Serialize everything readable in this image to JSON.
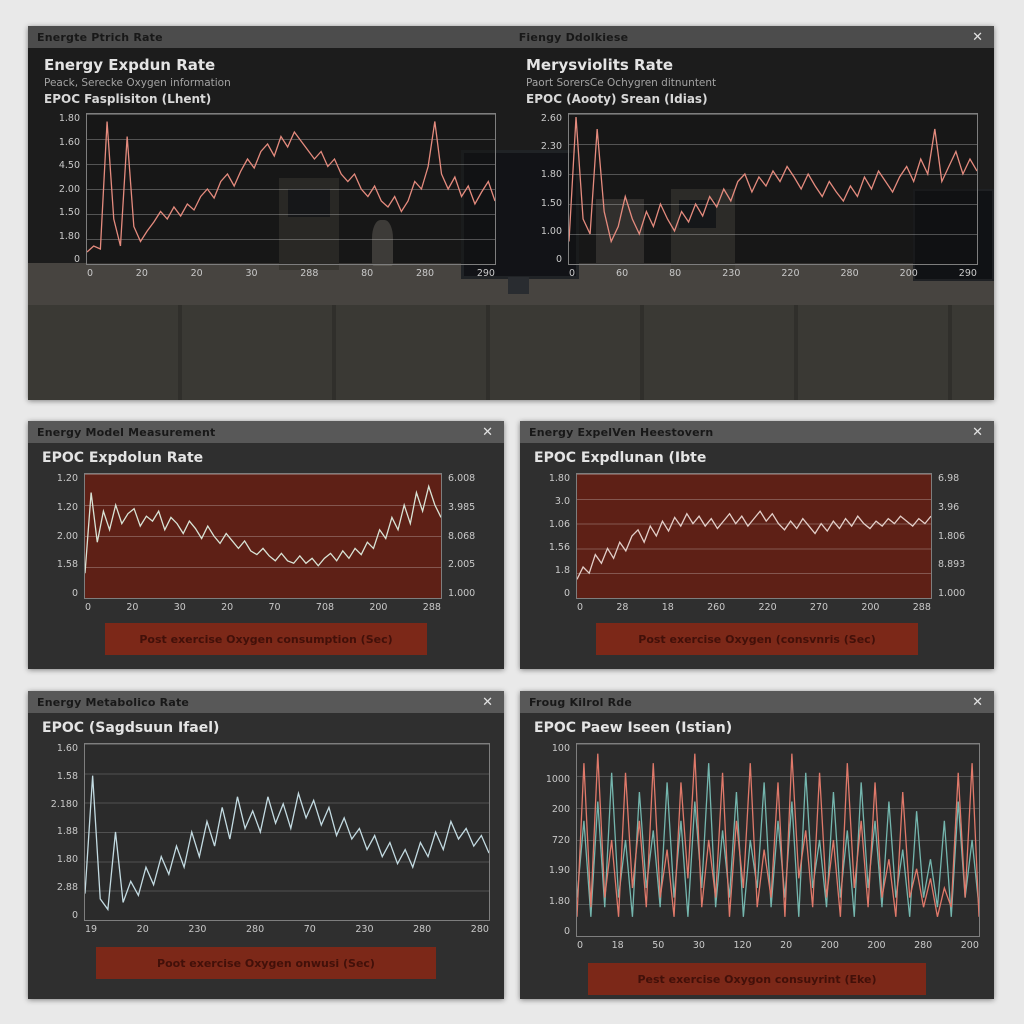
{
  "ui": {
    "close_glyph": "✕"
  },
  "top_window": {
    "titlebar_left": "Energte Ptrich Rate",
    "titlebar_right": "Fiengy Ddolkiese"
  },
  "windows": [
    {
      "title": "Energy Model Measurement"
    },
    {
      "title": "Energy ExpelVen Heestovern"
    },
    {
      "title": "Energy Metabolico Rate"
    },
    {
      "title": "Froug Kilrol Rde"
    }
  ],
  "chart_data": [
    {
      "position": "top-left",
      "type": "line",
      "title": "Energy Expdun Rate",
      "subtitle": "Peack, Serecke Oxygen information",
      "subtitle2": "EPOC Fasplisiton (Lhent)",
      "y_ticks": [
        "1.80",
        "1.60",
        "4.50",
        "2.00",
        "1.50",
        "1.80",
        "0"
      ],
      "x_ticks": [
        "0",
        "20",
        "20",
        "30",
        "288",
        "80",
        "280",
        "290"
      ],
      "ylim": [
        0,
        1
      ],
      "series": [
        {
          "name": "series-1",
          "color": "#e58b7e",
          "values": [
            0.08,
            0.12,
            0.1,
            0.95,
            0.3,
            0.12,
            0.85,
            0.25,
            0.15,
            0.22,
            0.28,
            0.35,
            0.3,
            0.38,
            0.32,
            0.4,
            0.36,
            0.45,
            0.5,
            0.44,
            0.55,
            0.6,
            0.52,
            0.62,
            0.7,
            0.64,
            0.75,
            0.8,
            0.72,
            0.85,
            0.78,
            0.88,
            0.82,
            0.76,
            0.7,
            0.75,
            0.65,
            0.7,
            0.6,
            0.55,
            0.6,
            0.5,
            0.45,
            0.52,
            0.42,
            0.38,
            0.45,
            0.35,
            0.42,
            0.55,
            0.5,
            0.65,
            0.95,
            0.6,
            0.5,
            0.58,
            0.45,
            0.52,
            0.4,
            0.48,
            0.55,
            0.42
          ]
        }
      ]
    },
    {
      "position": "top-right",
      "type": "line",
      "title": "Merysviolits Rate",
      "subtitle": "Paort SorersCe Ochygren ditnuntent",
      "subtitle2": "EPOC (Aooty) Srean (Idias)",
      "y_ticks": [
        "2.60",
        "2.30",
        "1.80",
        "1.50",
        "1.00",
        "0"
      ],
      "x_ticks": [
        "0",
        "60",
        "80",
        "230",
        "220",
        "280",
        "200",
        "290"
      ],
      "ylim": [
        0,
        1
      ],
      "series": [
        {
          "name": "series-1",
          "color": "#e58b7e",
          "values": [
            0.15,
            0.98,
            0.3,
            0.2,
            0.9,
            0.35,
            0.15,
            0.25,
            0.45,
            0.3,
            0.2,
            0.35,
            0.25,
            0.4,
            0.3,
            0.22,
            0.35,
            0.28,
            0.4,
            0.32,
            0.45,
            0.38,
            0.5,
            0.42,
            0.55,
            0.6,
            0.48,
            0.58,
            0.52,
            0.62,
            0.55,
            0.65,
            0.58,
            0.5,
            0.6,
            0.52,
            0.45,
            0.55,
            0.48,
            0.42,
            0.52,
            0.45,
            0.58,
            0.5,
            0.62,
            0.55,
            0.48,
            0.58,
            0.65,
            0.55,
            0.7,
            0.6,
            0.9,
            0.55,
            0.65,
            0.75,
            0.6,
            0.7,
            0.62
          ]
        }
      ]
    },
    {
      "position": "middle-left",
      "type": "line",
      "title": "EPOC Expdolun Rate",
      "caption": "Post exercise Oxygen consumption (Sec)",
      "y_ticks": [
        "1.20",
        "1.20",
        "2.00",
        "1.58",
        "0"
      ],
      "y_ticks_right": [
        "6.008",
        "3.985",
        "8.068",
        "2.005",
        "1.000"
      ],
      "x_ticks": [
        "0",
        "20",
        "30",
        "20",
        "70",
        "708",
        "200",
        "288"
      ],
      "ylim": [
        0,
        1
      ],
      "series": [
        {
          "name": "series-1",
          "color": "#d9e4d6",
          "values": [
            0.2,
            0.85,
            0.45,
            0.7,
            0.55,
            0.75,
            0.6,
            0.68,
            0.72,
            0.58,
            0.66,
            0.62,
            0.7,
            0.55,
            0.65,
            0.6,
            0.52,
            0.62,
            0.56,
            0.48,
            0.58,
            0.5,
            0.44,
            0.52,
            0.46,
            0.4,
            0.46,
            0.38,
            0.35,
            0.4,
            0.34,
            0.3,
            0.36,
            0.3,
            0.28,
            0.34,
            0.28,
            0.32,
            0.26,
            0.32,
            0.36,
            0.3,
            0.38,
            0.32,
            0.4,
            0.35,
            0.45,
            0.4,
            0.55,
            0.48,
            0.65,
            0.55,
            0.75,
            0.6,
            0.85,
            0.7,
            0.9,
            0.75,
            0.65
          ]
        }
      ]
    },
    {
      "position": "middle-right",
      "type": "line",
      "title": "EPOC Expdlunan (Ibte",
      "caption": "Post exercise Oxygen (consvnris (Sec)",
      "y_ticks": [
        "1.80",
        "3.0",
        "1.06",
        "1.56",
        "1.8",
        "0"
      ],
      "y_ticks_right": [
        "6.98",
        "3.96",
        "1.806",
        "8.893",
        "1.000"
      ],
      "x_ticks": [
        "0",
        "28",
        "18",
        "260",
        "220",
        "270",
        "200",
        "288"
      ],
      "ylim": [
        0,
        1
      ],
      "series": [
        {
          "name": "series-1",
          "color": "#e3cfc9",
          "values": [
            0.15,
            0.25,
            0.2,
            0.35,
            0.28,
            0.4,
            0.32,
            0.45,
            0.38,
            0.5,
            0.55,
            0.45,
            0.58,
            0.5,
            0.62,
            0.54,
            0.65,
            0.58,
            0.68,
            0.6,
            0.66,
            0.58,
            0.64,
            0.56,
            0.62,
            0.68,
            0.6,
            0.66,
            0.58,
            0.64,
            0.7,
            0.62,
            0.68,
            0.6,
            0.55,
            0.62,
            0.56,
            0.64,
            0.58,
            0.52,
            0.6,
            0.54,
            0.62,
            0.56,
            0.64,
            0.58,
            0.66,
            0.6,
            0.56,
            0.62,
            0.58,
            0.64,
            0.6,
            0.66,
            0.62,
            0.58,
            0.64,
            0.6,
            0.66
          ]
        }
      ]
    },
    {
      "position": "bottom-left",
      "type": "line",
      "title": "EPOC (Sagdsuun Ifael)",
      "caption": "Poot exercise Oxygen onwusi (Sec)",
      "y_ticks": [
        "1.60",
        "1.58",
        "2.180",
        "1.88",
        "1.80",
        "2.88",
        "0"
      ],
      "x_ticks": [
        "19",
        "20",
        "230",
        "280",
        "70",
        "230",
        "280",
        "280"
      ],
      "ylim": [
        0,
        1
      ],
      "series": [
        {
          "name": "series-1",
          "color": "#c3dbe2",
          "values": [
            0.15,
            0.82,
            0.12,
            0.06,
            0.5,
            0.1,
            0.22,
            0.14,
            0.3,
            0.2,
            0.36,
            0.26,
            0.42,
            0.3,
            0.5,
            0.36,
            0.56,
            0.42,
            0.64,
            0.46,
            0.7,
            0.52,
            0.62,
            0.5,
            0.7,
            0.55,
            0.66,
            0.52,
            0.72,
            0.58,
            0.68,
            0.54,
            0.64,
            0.48,
            0.58,
            0.46,
            0.52,
            0.4,
            0.48,
            0.36,
            0.44,
            0.32,
            0.4,
            0.3,
            0.44,
            0.36,
            0.5,
            0.4,
            0.56,
            0.46,
            0.52,
            0.42,
            0.48,
            0.38
          ]
        }
      ]
    },
    {
      "position": "bottom-right",
      "type": "line",
      "title": "EPOC Paew Iseen (Istian)",
      "caption": "Pest exercise Oxygon consuyrint (Eke)",
      "y_ticks": [
        "100",
        "1000",
        "200",
        "720",
        "1.90",
        "1.80",
        "0"
      ],
      "x_ticks": [
        "0",
        "18",
        "50",
        "30",
        "120",
        "20",
        "200",
        "200",
        "280",
        "200"
      ],
      "ylim": [
        0,
        1
      ],
      "series": [
        {
          "name": "salmon-series",
          "color": "#e0796a",
          "values": [
            0.1,
            0.9,
            0.15,
            0.95,
            0.2,
            0.5,
            0.1,
            0.85,
            0.25,
            0.6,
            0.15,
            0.9,
            0.2,
            0.45,
            0.1,
            0.8,
            0.3,
            0.95,
            0.15,
            0.5,
            0.2,
            0.85,
            0.1,
            0.6,
            0.25,
            0.9,
            0.15,
            0.45,
            0.2,
            0.8,
            0.1,
            0.95,
            0.3,
            0.55,
            0.15,
            0.85,
            0.2,
            0.5,
            0.1,
            0.9,
            0.25,
            0.6,
            0.15,
            0.8,
            0.2,
            0.4,
            0.1,
            0.75,
            0.2,
            0.35,
            0.15,
            0.3,
            0.1,
            0.25,
            0.15,
            0.85,
            0.2,
            0.9,
            0.1
          ]
        },
        {
          "name": "teal-series",
          "color": "#74b6ae",
          "values": [
            0.2,
            0.6,
            0.1,
            0.7,
            0.15,
            0.85,
            0.2,
            0.5,
            0.1,
            0.75,
            0.25,
            0.55,
            0.15,
            0.8,
            0.2,
            0.6,
            0.1,
            0.7,
            0.25,
            0.9,
            0.15,
            0.55,
            0.2,
            0.75,
            0.1,
            0.5,
            0.25,
            0.8,
            0.15,
            0.6,
            0.2,
            0.7,
            0.1,
            0.85,
            0.25,
            0.5,
            0.15,
            0.75,
            0.2,
            0.55,
            0.1,
            0.8,
            0.25,
            0.6,
            0.15,
            0.7,
            0.2,
            0.45,
            0.1,
            0.65,
            0.2,
            0.4,
            0.15,
            0.6,
            0.1,
            0.7,
            0.2,
            0.5,
            0.15
          ]
        }
      ]
    }
  ]
}
